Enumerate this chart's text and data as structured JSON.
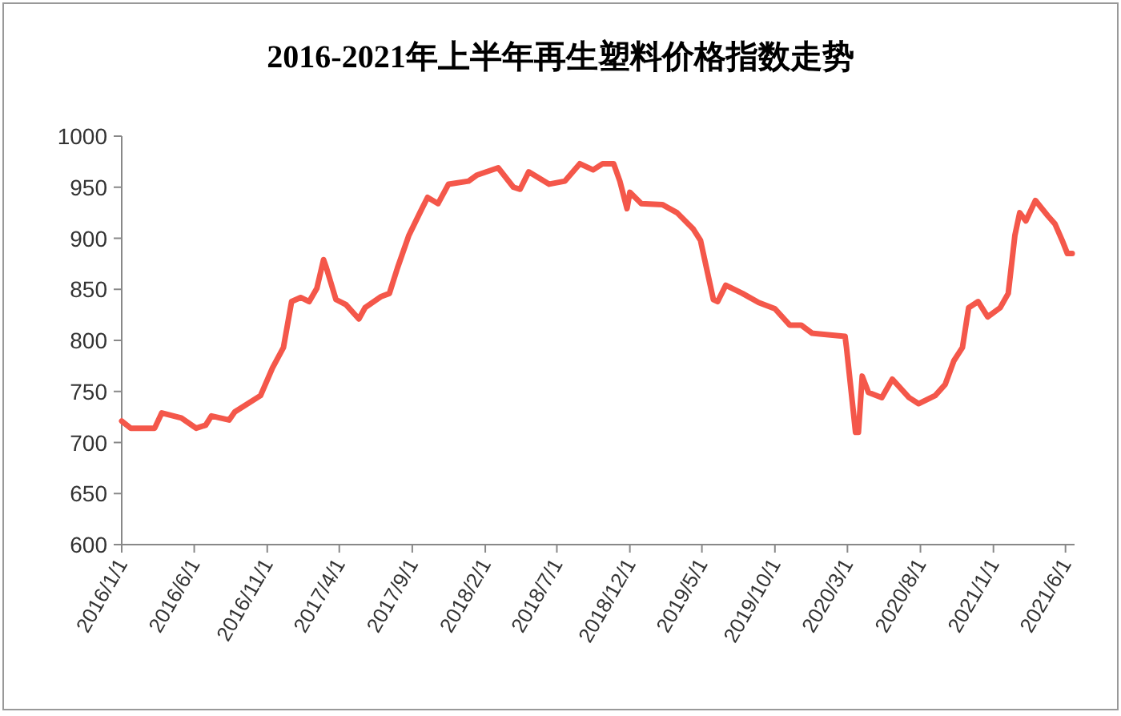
{
  "chart_data": {
    "type": "line",
    "title": "2016-2021年上半年再生塑料价格指数走势",
    "x": [
      "2016-01-01",
      "2016-01-20",
      "2016-03-10",
      "2016-03-25",
      "2016-05-05",
      "2016-06-05",
      "2016-06-25",
      "2016-07-07",
      "2016-08-13",
      "2016-08-25",
      "2016-10-18",
      "2016-11-12",
      "2016-12-05",
      "2016-12-22",
      "2017-01-10",
      "2017-01-28",
      "2017-02-13",
      "2017-02-27",
      "2017-03-05",
      "2017-03-25",
      "2017-04-15",
      "2017-05-12",
      "2017-05-25",
      "2017-06-28",
      "2017-07-15",
      "2017-08-01",
      "2017-08-25",
      "2017-09-18",
      "2017-10-03",
      "2017-10-25",
      "2017-11-16",
      "2017-12-28",
      "2018-01-15",
      "2018-02-28",
      "2018-04-01",
      "2018-04-15",
      "2018-05-03",
      "2018-06-15",
      "2018-07-18",
      "2018-08-18",
      "2018-09-15",
      "2018-10-05",
      "2018-10-28",
      "2018-11-10",
      "2018-11-25",
      "2018-12-01",
      "2018-12-25",
      "2019-02-07",
      "2019-03-10",
      "2019-04-13",
      "2019-04-28",
      "2019-05-25",
      "2019-06-03",
      "2019-06-20",
      "2019-07-25",
      "2019-08-28",
      "2019-10-01",
      "2019-11-01",
      "2019-11-25",
      "2019-12-18",
      "2020-02-25",
      "2020-02-28",
      "2020-03-18",
      "2020-03-24",
      "2020-04-01",
      "2020-04-14",
      "2020-05-12",
      "2020-06-03",
      "2020-07-08",
      "2020-07-28",
      "2020-09-01",
      "2020-09-22",
      "2020-10-10",
      "2020-10-28",
      "2020-11-10",
      "2020-11-30",
      "2020-12-20",
      "2021-01-15",
      "2021-02-01",
      "2021-02-15",
      "2021-02-25",
      "2021-03-10",
      "2021-03-30",
      "2021-04-25",
      "2021-05-10",
      "2021-05-25",
      "2021-06-05",
      "2021-06-15"
    ],
    "values": [
      721,
      714,
      714,
      729,
      724,
      714,
      717,
      726,
      722,
      730,
      746,
      773,
      793,
      838,
      842,
      838,
      851,
      879,
      871,
      840,
      835,
      821,
      832,
      843,
      846,
      871,
      903,
      926,
      940,
      934,
      953,
      956,
      962,
      969,
      950,
      948,
      965,
      953,
      956,
      973,
      967,
      973,
      973,
      956,
      929,
      945,
      934,
      933,
      925,
      909,
      898,
      840,
      838,
      854,
      846,
      837,
      831,
      815,
      815,
      807,
      804,
      793,
      710,
      710,
      765,
      749,
      744,
      762,
      744,
      738,
      746,
      757,
      780,
      793,
      832,
      838,
      823,
      832,
      846,
      903,
      925,
      917,
      937,
      922,
      914,
      898,
      885,
      885
    ],
    "color": "#f4574a",
    "xlim": [
      "2016-01-01",
      "2021-06-20"
    ],
    "ylim": [
      600,
      1000
    ],
    "yticks": [
      600,
      650,
      700,
      750,
      800,
      850,
      900,
      950,
      1000
    ],
    "xticks": [
      {
        "value": "2016-01-01",
        "label": "2016/1/1"
      },
      {
        "value": "2016-06-01",
        "label": "2016/6/1"
      },
      {
        "value": "2016-11-01",
        "label": "2016/11/1"
      },
      {
        "value": "2017-04-01",
        "label": "2017/4/1"
      },
      {
        "value": "2017-09-01",
        "label": "2017/9/1"
      },
      {
        "value": "2018-02-01",
        "label": "2018/2/1"
      },
      {
        "value": "2018-07-01",
        "label": "2018/7/1"
      },
      {
        "value": "2018-12-01",
        "label": "2018/12/1"
      },
      {
        "value": "2019-05-01",
        "label": "2019/5/1"
      },
      {
        "value": "2019-10-01",
        "label": "2019/10/1"
      },
      {
        "value": "2020-03-01",
        "label": "2020/3/1"
      },
      {
        "value": "2020-08-01",
        "label": "2020/8/1"
      },
      {
        "value": "2021-01-01",
        "label": "2021/1/1"
      },
      {
        "value": "2021-06-01",
        "label": "2021/6/1"
      }
    ]
  }
}
